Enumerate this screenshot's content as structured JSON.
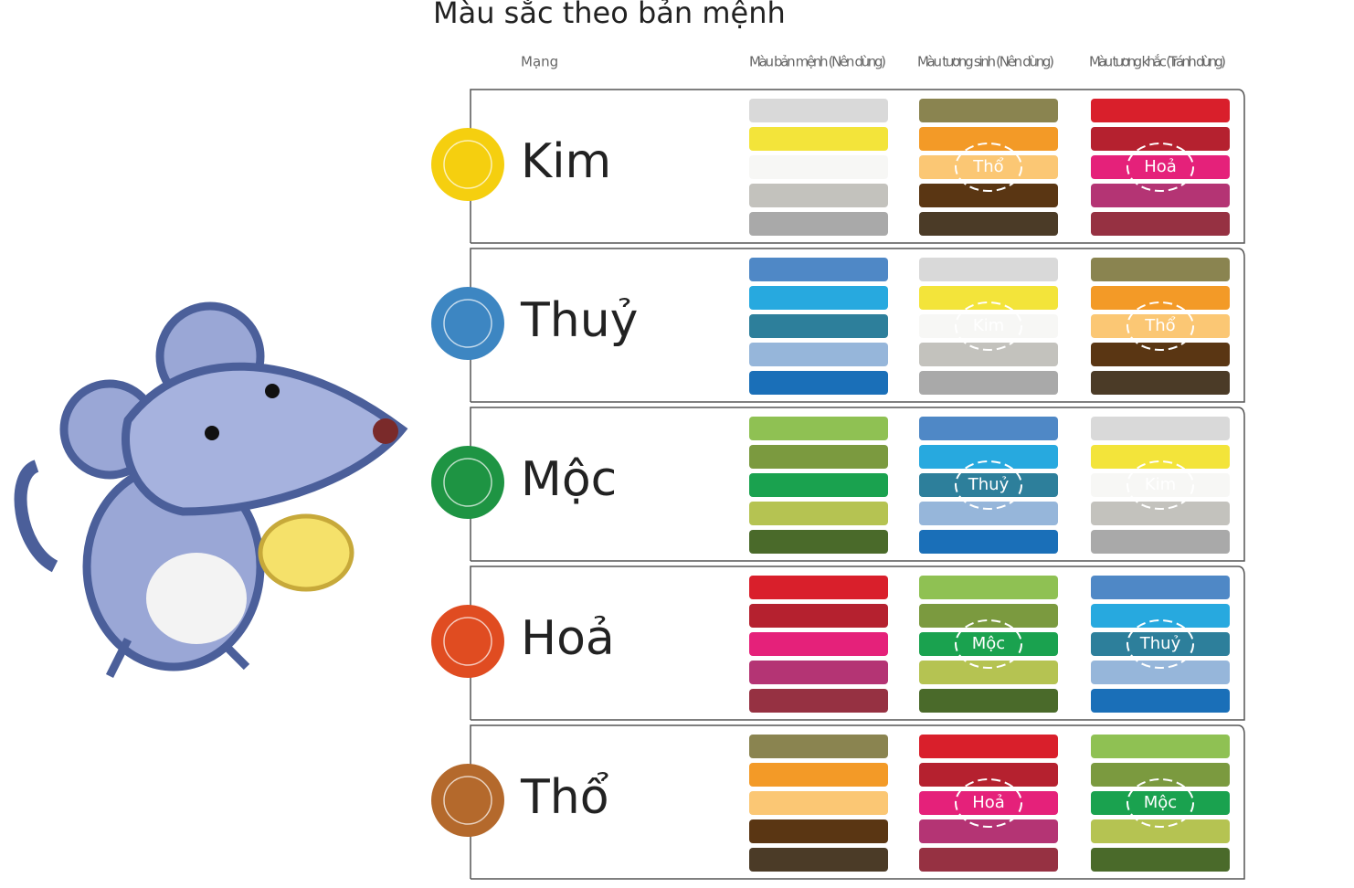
{
  "header": {
    "title": "Màu sắc theo bản mệnh"
  },
  "columns": [
    "Mạng",
    "Màu bản mệnh (Nên dùng)",
    "Màu tương sinh (Nên dùng)",
    "Màu tương khắc (Tránh dùng)"
  ],
  "rows": [
    {
      "label": "Kim",
      "icon_color": "#f5cf0f",
      "colors": [
        "#d9d9d9",
        "#f3e43a",
        "#f7f7f5",
        "#c3c2bd",
        "#a9a9a9"
      ],
      "tuong_sinh": "Thổ",
      "tuong_khac": "Hoả"
    },
    {
      "label": "Thuỷ",
      "icon_color": "#3d86c2",
      "colors": [
        "#4f88c6",
        "#27a9df",
        "#2d7f9b",
        "#96b6da",
        "#1a6fb8"
      ],
      "tuong_sinh": "Kim",
      "tuong_khac": "Thổ"
    },
    {
      "label": "Mộc",
      "icon_color": "#1e9443",
      "colors": [
        "#8fc153",
        "#7b9a3f",
        "#1aa24f",
        "#b5c352",
        "#4a6a2a"
      ],
      "tuong_sinh": "Thuỷ",
      "tuong_khac": "Kim"
    },
    {
      "label": "Hoả",
      "icon_color": "#e04c21",
      "colors": [
        "#d91f2b",
        "#b5212f",
        "#e5217a",
        "#b43474",
        "#963142"
      ],
      "tuong_sinh": "Mộc",
      "tuong_khac": "Thuỷ"
    },
    {
      "label": "Thổ",
      "icon_color": "#b4692c",
      "colors": [
        "#8a8450",
        "#f39a27",
        "#fbc774",
        "#5a3613",
        "#4b3b27"
      ],
      "tuong_sinh": "Hoả",
      "tuong_khac": "Mộc"
    }
  ]
}
